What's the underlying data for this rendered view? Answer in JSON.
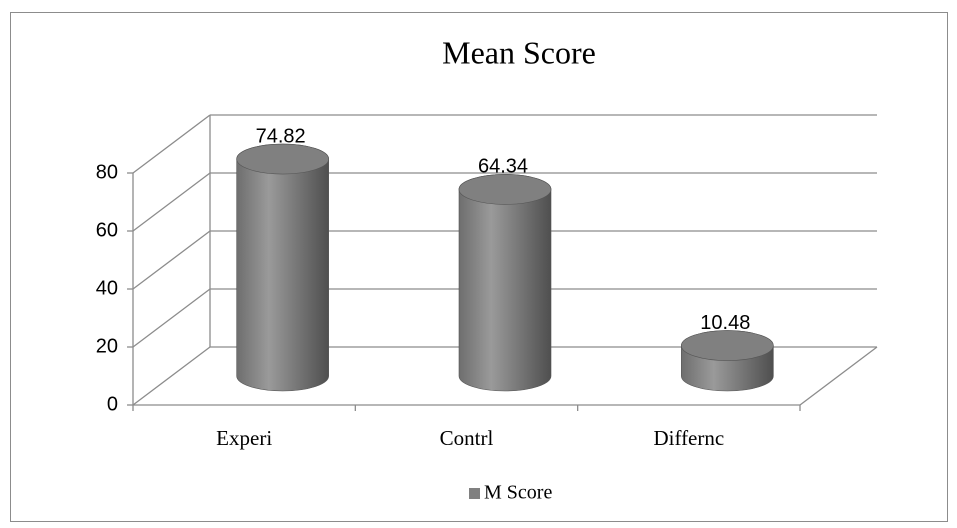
{
  "chart_data": {
    "type": "bar3d",
    "title": "Mean Score",
    "categories": [
      "Experi",
      "Contrl",
      "Differnc"
    ],
    "series": [
      {
        "name": "M Score",
        "color": "#808080",
        "values": [
          74.82,
          64.34,
          10.48
        ]
      }
    ],
    "ylim": [
      0,
      80
    ],
    "yticks": [
      0,
      20,
      40,
      60,
      80
    ],
    "grid": true,
    "legend": "bottom"
  }
}
